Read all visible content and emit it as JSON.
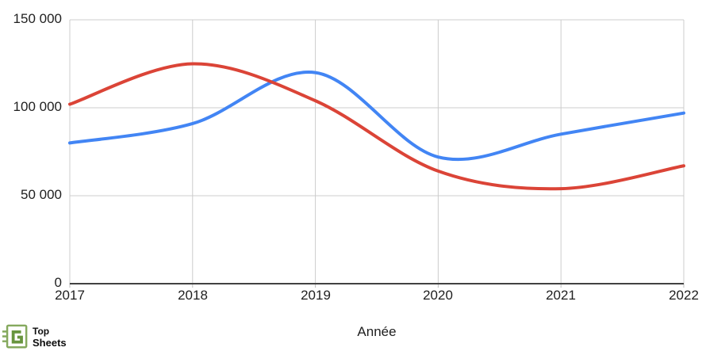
{
  "chart_data": {
    "type": "line",
    "smooth": true,
    "title": "",
    "xlabel": "Année",
    "ylabel": "",
    "legend_position": "none",
    "grid": true,
    "x": [
      2017,
      2018,
      2019,
      2020,
      2021,
      2022
    ],
    "x_tick_labels": [
      "2017",
      "2018",
      "2019",
      "2020",
      "2021",
      "2022"
    ],
    "ylim": [
      0,
      150000
    ],
    "y_tick_values": [
      0,
      50000,
      100000,
      150000
    ],
    "y_tick_labels": [
      "0",
      "50 000",
      "100 000",
      "150 000"
    ],
    "series": [
      {
        "name": "series-red",
        "color": "#DB4437",
        "values": [
          102000,
          125000,
          104000,
          64000,
          54000,
          67000
        ]
      },
      {
        "name": "series-blue",
        "color": "#4285F4",
        "values": [
          80000,
          91000,
          120000,
          72000,
          85000,
          97000
        ]
      }
    ]
  },
  "colors": {
    "gridline": "#cccccc",
    "axis_line": "#424242",
    "tick": "#bdbdbd",
    "label_text": "#1f1f1f",
    "logo_green_light": "#85a95e",
    "logo_green_dark": "#68953f"
  },
  "branding": {
    "line1": "Top",
    "line2": "Sheets"
  }
}
